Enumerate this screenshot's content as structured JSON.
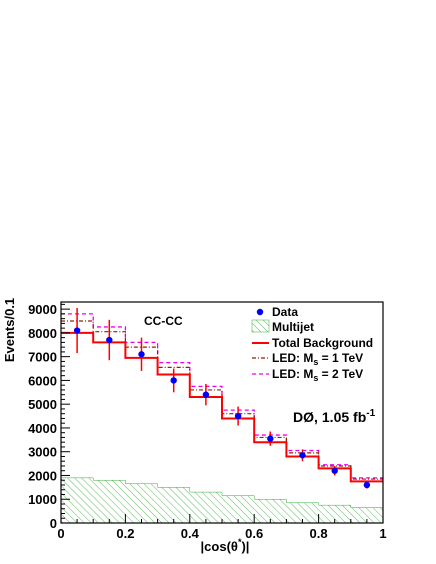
{
  "chart_data": {
    "type": "histogram",
    "xlabel_main": "|cos(θ",
    "xlabel_sup": "*",
    "xlabel_end": ")|",
    "ylabel": "Events/0.1",
    "xlim": [
      0,
      1
    ],
    "ylim": [
      0,
      9300
    ],
    "x_ticks": [
      0,
      0.2,
      0.4,
      0.6,
      0.8,
      1
    ],
    "x_tick_labels": [
      "0",
      "0.2",
      "0.4",
      "0.6",
      "0.8",
      "1"
    ],
    "y_ticks": [
      0,
      1000,
      2000,
      3000,
      4000,
      5000,
      6000,
      7000,
      8000,
      9000
    ],
    "y_tick_labels": [
      "0",
      "1000",
      "2000",
      "3000",
      "4000",
      "5000",
      "6000",
      "7000",
      "8000",
      "9000"
    ],
    "bin_edges": [
      0,
      0.1,
      0.2,
      0.3,
      0.4,
      0.5,
      0.6,
      0.7,
      0.8,
      0.9,
      1.0
    ],
    "category_label": "CC-CC",
    "experiment": {
      "name": "DØ,",
      "lumi": "1.05 fb",
      "lumi_sup": "-1"
    },
    "legend": {
      "data": "Data",
      "multijet": "Multijet",
      "total": "Total Background",
      "led1_prefix": "LED: M",
      "led1_sub": "s",
      "led1_suffix": " = 1 TeV",
      "led2_prefix": "LED: M",
      "led2_sub": "s",
      "led2_suffix": " = 2 TeV"
    },
    "series": [
      {
        "key": "data",
        "x": [
          0.05,
          0.15,
          0.25,
          0.35,
          0.45,
          0.55,
          0.65,
          0.75,
          0.85,
          0.95
        ],
        "values": [
          8100,
          7700,
          7100,
          6000,
          5400,
          4500,
          3550,
          2850,
          2200,
          1600
        ],
        "err": [
          950,
          850,
          700,
          500,
          450,
          400,
          300,
          250,
          200,
          150
        ],
        "color": "#0000ff"
      },
      {
        "key": "multijet",
        "values": [
          1900,
          1800,
          1650,
          1500,
          1300,
          1150,
          1000,
          850,
          750,
          650
        ],
        "color": "#33aa33"
      },
      {
        "key": "total",
        "values": [
          8000,
          7600,
          6950,
          6250,
          5300,
          4400,
          3400,
          2800,
          2300,
          1750
        ],
        "color": "#ff0000"
      },
      {
        "key": "led1",
        "values": [
          8500,
          8050,
          7400,
          6550,
          5600,
          4600,
          3600,
          2950,
          2400,
          1850
        ],
        "color": "#8b2500"
      },
      {
        "key": "led2",
        "values": [
          8800,
          8250,
          7600,
          6750,
          5750,
          4750,
          3700,
          3050,
          2450,
          1900
        ],
        "color": "#ee00ee"
      }
    ]
  }
}
